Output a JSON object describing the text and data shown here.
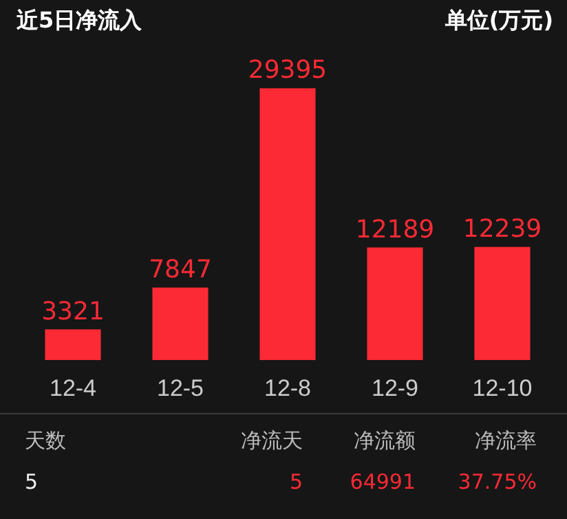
{
  "chart_data": {
    "type": "bar",
    "title": "近5日净流入",
    "categories": [
      "12-4",
      "12-5",
      "12-8",
      "12-9",
      "12-10"
    ],
    "values": [
      3321,
      7847,
      29395,
      12189,
      12239
    ],
    "color": "#fb2a35",
    "data_labels": true,
    "annotations": [
      "单位(万元)",
      "天数",
      "净流天",
      "净流额",
      "净流率",
      "5",
      "5",
      "64991",
      "37.75%"
    ]
  }
}
